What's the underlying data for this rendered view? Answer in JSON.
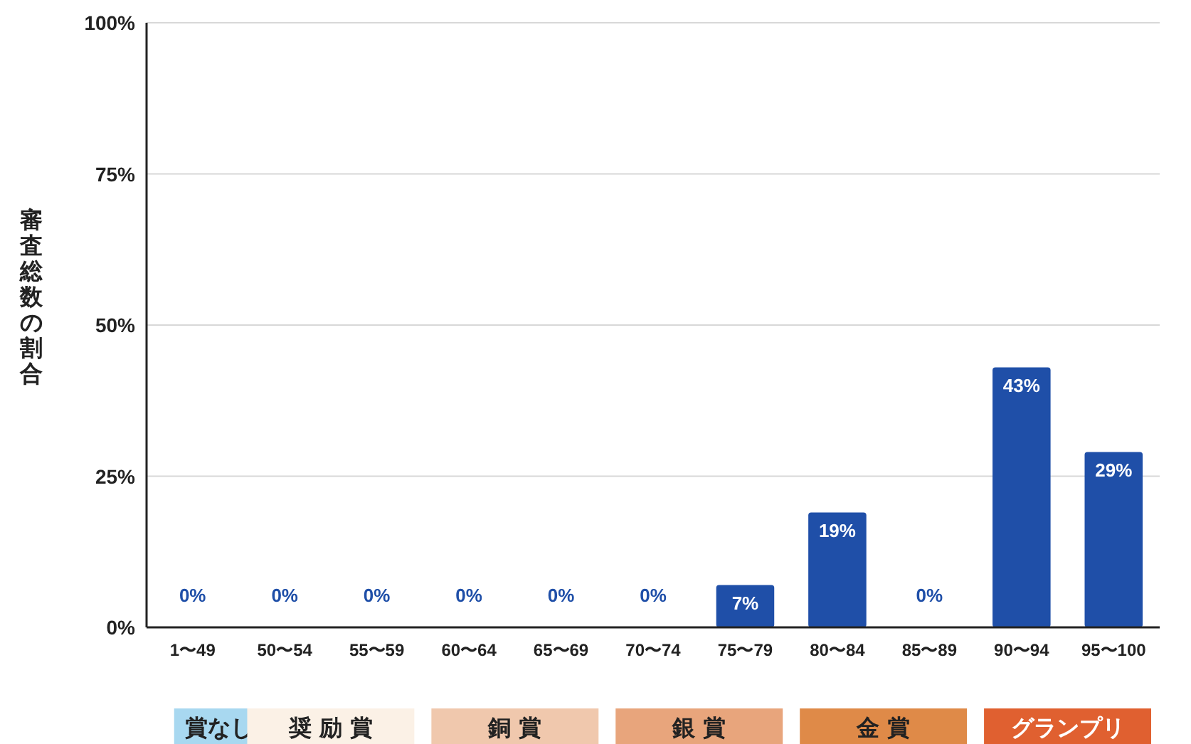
{
  "chart_data": {
    "type": "bar",
    "ylabel": "審査総数の割合",
    "categories": [
      "1〜49",
      "50〜54",
      "55〜59",
      "60〜64",
      "65〜69",
      "70〜74",
      "75〜79",
      "80〜84",
      "85〜89",
      "90〜94",
      "95〜100"
    ],
    "values": [
      0,
      0,
      0,
      0,
      0,
      0,
      7,
      19,
      0,
      43,
      29
    ],
    "value_labels": [
      "0%",
      "0%",
      "0%",
      "0%",
      "0%",
      "0%",
      "7%",
      "19%",
      "0%",
      "43%",
      "29%"
    ],
    "color": "#1f4fa8",
    "ylim": [
      0,
      100
    ],
    "yticks": [
      {
        "value": 0,
        "label": "0%"
      },
      {
        "value": 25,
        "label": "25%"
      },
      {
        "value": 50,
        "label": "50%"
      },
      {
        "value": 75,
        "label": "75%"
      },
      {
        "value": 100,
        "label": "100%"
      }
    ],
    "grid": "y",
    "annotations": [
      "賞なし",
      "奨 励 賞",
      "銅 賞",
      "銀 賞",
      "金 賞",
      "グランプリ"
    ]
  }
}
